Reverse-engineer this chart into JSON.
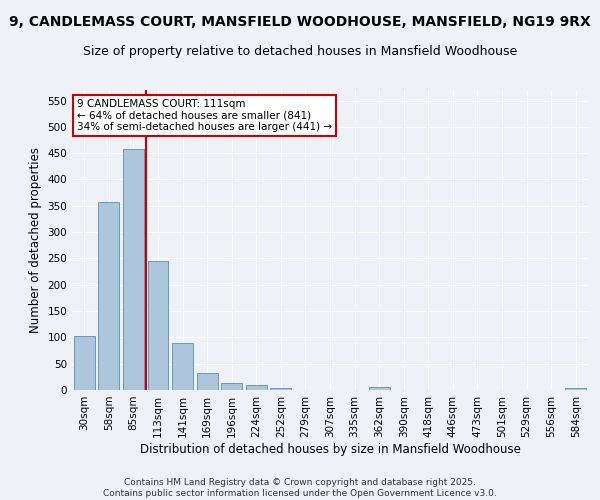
{
  "title": "9, CANDLEMASS COURT, MANSFIELD WOODHOUSE, MANSFIELD, NG19 9RX",
  "subtitle": "Size of property relative to detached houses in Mansfield Woodhouse",
  "xlabel": "Distribution of detached houses by size in Mansfield Woodhouse",
  "ylabel": "Number of detached properties",
  "bar_labels": [
    "30sqm",
    "58sqm",
    "85sqm",
    "113sqm",
    "141sqm",
    "169sqm",
    "196sqm",
    "224sqm",
    "252sqm",
    "279sqm",
    "307sqm",
    "335sqm",
    "362sqm",
    "390sqm",
    "418sqm",
    "446sqm",
    "473sqm",
    "501sqm",
    "529sqm",
    "556sqm",
    "584sqm"
  ],
  "bar_values": [
    103,
    357,
    457,
    245,
    90,
    32,
    14,
    9,
    4,
    0,
    0,
    0,
    5,
    0,
    0,
    0,
    0,
    0,
    0,
    0,
    4
  ],
  "bar_color": "#aec6dc",
  "bar_edge_color": "#6699bb",
  "vline_color": "#cc0000",
  "annotation_text": "9 CANDLEMASS COURT: 111sqm\n← 64% of detached houses are smaller (841)\n34% of semi-detached houses are larger (441) →",
  "annotation_box_color": "#ffffff",
  "annotation_box_edge": "#cc0000",
  "ylim": [
    0,
    570
  ],
  "yticks": [
    0,
    50,
    100,
    150,
    200,
    250,
    300,
    350,
    400,
    450,
    500,
    550
  ],
  "footer": "Contains HM Land Registry data © Crown copyright and database right 2025.\nContains public sector information licensed under the Open Government Licence v3.0.",
  "bg_color": "#eef2f7",
  "grid_color": "#ffffff",
  "title_fontsize": 10,
  "subtitle_fontsize": 9,
  "axis_label_fontsize": 8.5,
  "tick_fontsize": 7.5,
  "footer_fontsize": 6.5
}
